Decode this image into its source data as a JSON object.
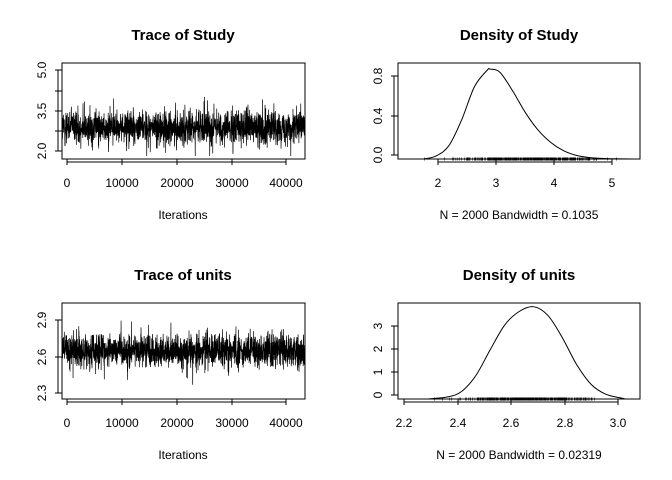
{
  "chart_data": [
    {
      "type": "line",
      "title": "Trace of Study",
      "xlabel": "Iterations",
      "ylabel": "",
      "xlim": [
        1001,
        40991
      ],
      "ylim": [
        1.9,
        5.1
      ],
      "x_ticks": [
        "0",
        "10000",
        "20000",
        "30000",
        "40000"
      ],
      "y_ticks": [
        "2.0",
        "3.5",
        "5.0"
      ],
      "y_minor_ticks": [
        "3.5"
      ],
      "series": [
        {
          "samples": 2000,
          "center": 2.95,
          "spread": 0.38,
          "min": 2.0,
          "max": 4.95
        }
      ]
    },
    {
      "type": "line",
      "title": "Density of Study",
      "xlabel": "N = 2000   Bandwidth = 0.1035",
      "ylabel": "",
      "xlim": [
        1.4,
        5.2
      ],
      "ylim": [
        0,
        0.93
      ],
      "x_ticks": [
        "2",
        "3",
        "4",
        "5"
      ],
      "y_ticks": [
        "0.0",
        "0.4",
        "0.8"
      ],
      "rug_range": [
        1.8,
        5.1
      ],
      "series": [
        {
          "x": [
            1.8,
            2.0,
            2.2,
            2.4,
            2.6,
            2.8,
            2.85,
            3.0,
            3.2,
            3.4,
            3.6,
            3.8,
            4.0,
            4.2,
            4.4,
            4.6,
            4.8,
            5.1
          ],
          "y": [
            0.0,
            0.03,
            0.13,
            0.38,
            0.7,
            0.86,
            0.87,
            0.84,
            0.66,
            0.45,
            0.28,
            0.16,
            0.08,
            0.035,
            0.015,
            0.006,
            0.002,
            0.0
          ]
        }
      ]
    },
    {
      "type": "line",
      "title": "Trace of units",
      "xlabel": "Iterations",
      "ylabel": "",
      "xlim": [
        1001,
        40991
      ],
      "ylim": [
        2.28,
        3.0
      ],
      "x_ticks": [
        "0",
        "10000",
        "20000",
        "30000",
        "40000"
      ],
      "y_ticks": [
        "2.3",
        "2.6",
        "2.9"
      ],
      "series": [
        {
          "samples": 2000,
          "center": 2.64,
          "spread": 0.085,
          "min": 2.28,
          "max": 2.97
        }
      ]
    },
    {
      "type": "line",
      "title": "Density of units",
      "xlabel": "N = 2000   Bandwidth = 0.02319",
      "ylabel": "",
      "xlim": [
        2.18,
        3.02
      ],
      "ylim": [
        0,
        3.9
      ],
      "x_ticks": [
        "2.2",
        "2.4",
        "2.6",
        "2.8",
        "3.0"
      ],
      "y_ticks": [
        "0",
        "1",
        "2",
        "3"
      ],
      "rug_range": [
        2.28,
        2.97
      ],
      "series": [
        {
          "x": [
            2.28,
            2.35,
            2.4,
            2.45,
            2.5,
            2.55,
            2.6,
            2.65,
            2.7,
            2.75,
            2.8,
            2.85,
            2.9,
            2.95,
            2.97
          ],
          "y": [
            0.0,
            0.08,
            0.3,
            0.95,
            2.0,
            3.0,
            3.55,
            3.75,
            3.4,
            2.5,
            1.4,
            0.6,
            0.2,
            0.05,
            0.0
          ]
        }
      ]
    }
  ]
}
